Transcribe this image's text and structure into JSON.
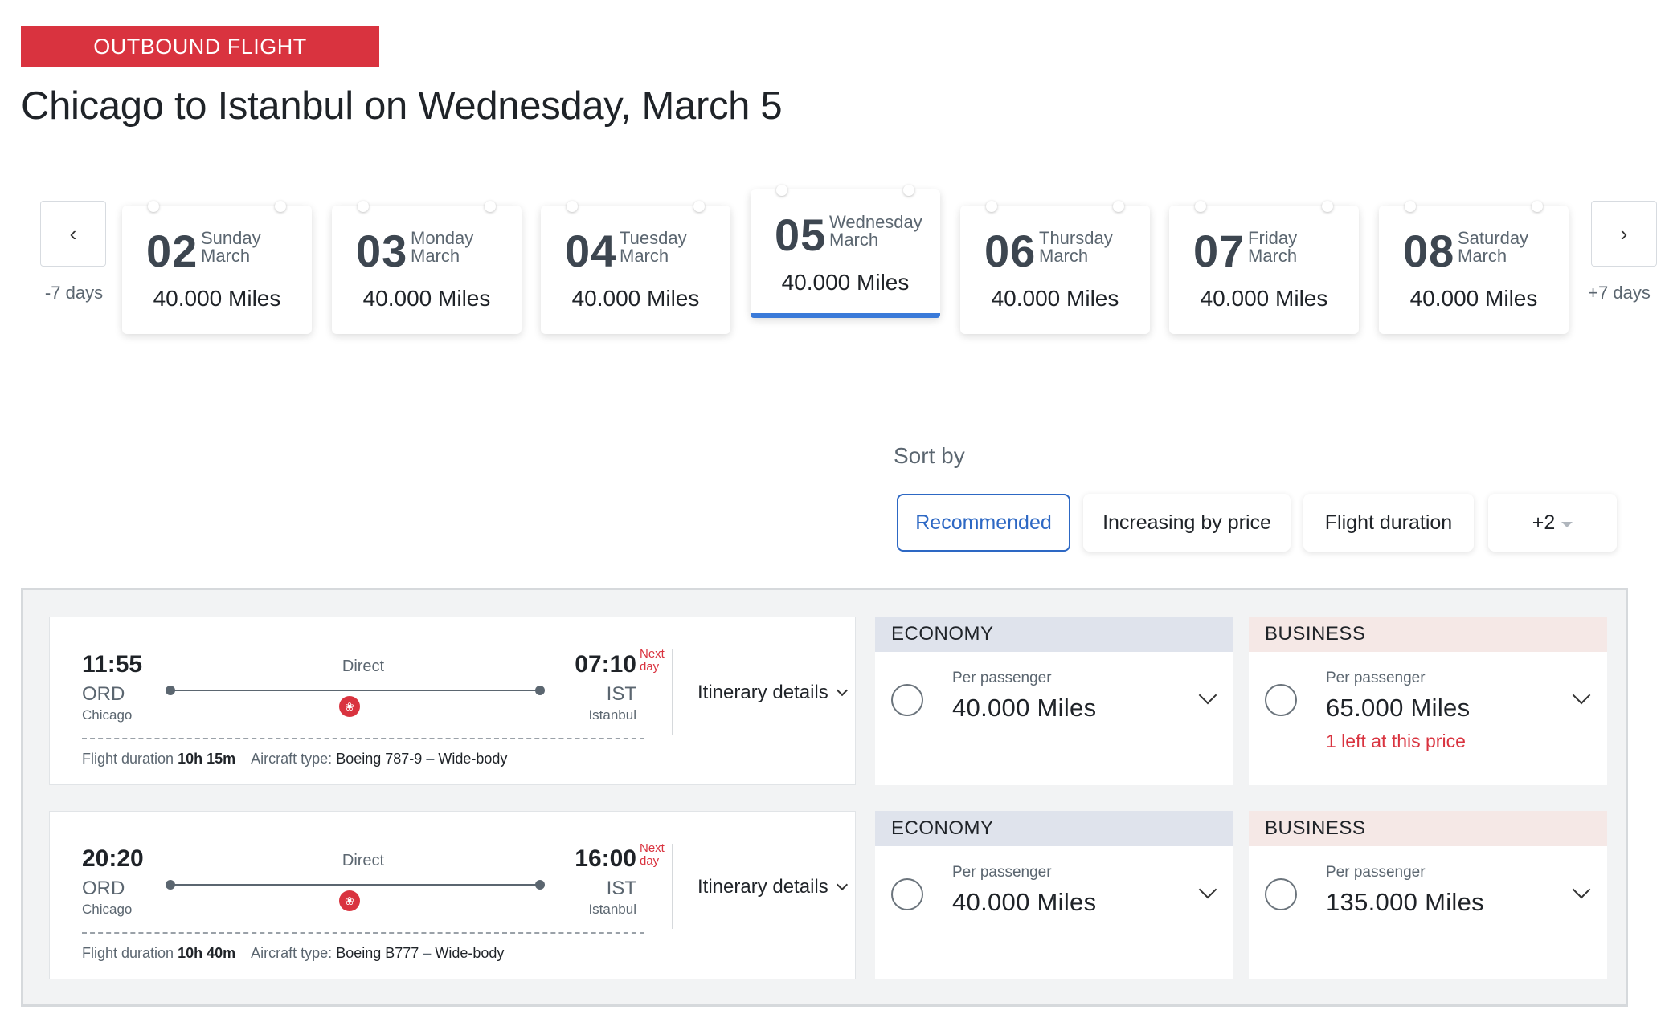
{
  "header": {
    "tag": "OUTBOUND FLIGHT",
    "title": "Chicago to Istanbul on Wednesday, March 5"
  },
  "dates": {
    "prev_caption": "-7 days",
    "next_caption": "+7 days",
    "prev_icon": "chevron-left-icon",
    "next_icon": "chevron-right-icon",
    "items": [
      {
        "num": "02",
        "day": "Sunday",
        "month": "March",
        "miles": "40.000 Miles",
        "selected": false
      },
      {
        "num": "03",
        "day": "Monday",
        "month": "March",
        "miles": "40.000 Miles",
        "selected": false
      },
      {
        "num": "04",
        "day": "Tuesday",
        "month": "March",
        "miles": "40.000 Miles",
        "selected": false
      },
      {
        "num": "05",
        "day": "Wednesday",
        "month": "March",
        "miles": "40.000 Miles",
        "selected": true
      },
      {
        "num": "06",
        "day": "Thursday",
        "month": "March",
        "miles": "40.000 Miles",
        "selected": false
      },
      {
        "num": "07",
        "day": "Friday",
        "month": "March",
        "miles": "40.000 Miles",
        "selected": false
      },
      {
        "num": "08",
        "day": "Saturday",
        "month": "March",
        "miles": "40.000 Miles",
        "selected": false
      }
    ]
  },
  "sort": {
    "label": "Sort by",
    "options": [
      "Recommended",
      "Increasing by price",
      "Flight duration",
      "+2"
    ],
    "active": "Recommended"
  },
  "flights": [
    {
      "dep_time": "11:55",
      "dep_code": "ORD",
      "dep_city": "Chicago",
      "arr_time": "07:10",
      "arr_code": "IST",
      "arr_city": "Istanbul",
      "next_day_1": "Next",
      "next_day_2": "day",
      "stops": "Direct",
      "itinerary": "Itinerary details",
      "duration_label": "Flight duration",
      "duration": "10h 15m",
      "aircraft_label": "Aircraft type:",
      "aircraft": "Boeing 787-9",
      "sep": "–",
      "body": "Wide-body",
      "economy": {
        "class": "ECONOMY",
        "per": "Per passenger",
        "miles": "40.000 Miles",
        "note": ""
      },
      "business": {
        "class": "BUSINESS",
        "per": "Per passenger",
        "miles": "65.000 Miles",
        "note": "1 left at this price"
      }
    },
    {
      "dep_time": "20:20",
      "dep_code": "ORD",
      "dep_city": "Chicago",
      "arr_time": "16:00",
      "arr_code": "IST",
      "arr_city": "Istanbul",
      "next_day_1": "Next",
      "next_day_2": "day",
      "stops": "Direct",
      "itinerary": "Itinerary details",
      "duration_label": "Flight duration",
      "duration": "10h 40m",
      "aircraft_label": "Aircraft type:",
      "aircraft": "Boeing B777",
      "sep": "–",
      "body": "Wide-body",
      "economy": {
        "class": "ECONOMY",
        "per": "Per passenger",
        "miles": "40.000 Miles",
        "note": ""
      },
      "business": {
        "class": "BUSINESS",
        "per": "Per passenger",
        "miles": "135.000 Miles",
        "note": ""
      }
    }
  ],
  "colors": {
    "brand_red": "#d9333f",
    "accent_blue": "#2d68c4"
  }
}
